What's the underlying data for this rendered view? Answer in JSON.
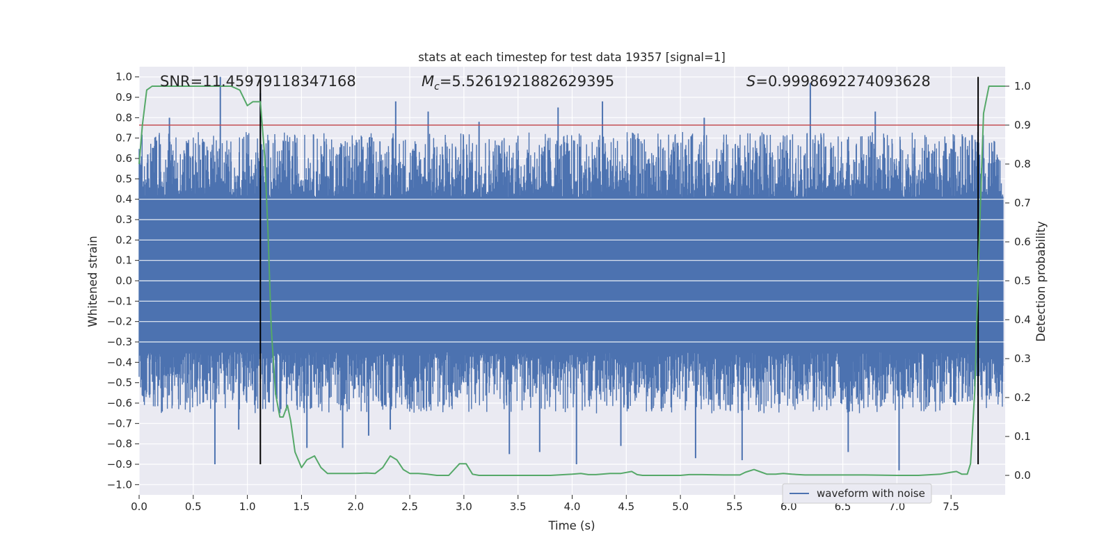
{
  "chart_data": {
    "type": "line",
    "title": "stats at each timestep for test data 19357 [signal=1]",
    "xlabel": "Time (s)",
    "ylabel": "Whitened strain",
    "ylabel_right": "Detection probability",
    "xlim": [
      0.0,
      8.0
    ],
    "ylim": [
      -1.05,
      1.05
    ],
    "ylim_right": [
      -0.05,
      1.05
    ],
    "x_ticks": [
      "0.0",
      "0.5",
      "1.0",
      "1.5",
      "2.0",
      "2.5",
      "3.0",
      "3.5",
      "4.0",
      "4.5",
      "5.0",
      "5.5",
      "6.0",
      "6.5",
      "7.0",
      "7.5"
    ],
    "y_ticks": [
      "1.0",
      "0.9",
      "0.8",
      "0.7",
      "0.6",
      "0.5",
      "0.4",
      "0.3",
      "0.2",
      "0.1",
      "0.0",
      "−0.1",
      "−0.2",
      "−0.3",
      "−0.4",
      "−0.5",
      "−0.6",
      "−0.7",
      "−0.8",
      "−0.9",
      "−1.0"
    ],
    "y_ticks_right": [
      "1.0",
      "0.9",
      "0.8",
      "0.7",
      "0.6",
      "0.5",
      "0.4",
      "0.3",
      "0.2",
      "0.1",
      "0.0"
    ],
    "annotations": {
      "snr": "SNR=11.45979118347168",
      "mc_symbol": "M",
      "mc_sub": "c",
      "mc_value": "=5.5261921882629395",
      "s_symbol": "S",
      "s_value": "=0.9998692274093628"
    },
    "legend": [
      {
        "label": "waveform with noise",
        "color": "#4c72b0"
      }
    ],
    "legend_position": "lower right",
    "threshold": {
      "value": 0.9,
      "axis": "right",
      "color": "#c44e52"
    },
    "vlines": [
      1.12,
      7.75
    ],
    "waveform": {
      "name": "waveform with noise",
      "color": "#4c72b0",
      "core_band": [
        -0.35,
        0.41
      ],
      "spikes": [
        {
          "x": 0.08,
          "v": 0.62
        },
        {
          "x": 0.28,
          "v": 0.8
        },
        {
          "x": 0.75,
          "v": 1.0
        },
        {
          "x": 1.12,
          "v": 0.92
        },
        {
          "x": 2.37,
          "v": 0.88
        },
        {
          "x": 2.67,
          "v": 0.83
        },
        {
          "x": 3.14,
          "v": 0.78
        },
        {
          "x": 3.87,
          "v": 0.85
        },
        {
          "x": 4.28,
          "v": 0.88
        },
        {
          "x": 5.22,
          "v": 0.8
        },
        {
          "x": 6.2,
          "v": 0.97
        },
        {
          "x": 6.8,
          "v": 0.83
        },
        {
          "x": 0.7,
          "v": -0.9
        },
        {
          "x": 0.92,
          "v": -0.73
        },
        {
          "x": 1.55,
          "v": -0.82
        },
        {
          "x": 1.88,
          "v": -0.82
        },
        {
          "x": 2.12,
          "v": -0.76
        },
        {
          "x": 2.32,
          "v": -0.73
        },
        {
          "x": 3.42,
          "v": -0.85
        },
        {
          "x": 3.7,
          "v": -0.84
        },
        {
          "x": 4.04,
          "v": -0.9
        },
        {
          "x": 4.45,
          "v": -0.81
        },
        {
          "x": 5.14,
          "v": -0.87
        },
        {
          "x": 5.57,
          "v": -0.88
        },
        {
          "x": 6.55,
          "v": -0.84
        },
        {
          "x": 7.02,
          "v": -0.93
        }
      ]
    },
    "probability": {
      "name": "detection probability",
      "color": "#55a868",
      "x": [
        0.0,
        0.03,
        0.07,
        0.12,
        0.2,
        0.35,
        0.6,
        0.75,
        0.85,
        0.93,
        1.0,
        1.05,
        1.08,
        1.12,
        1.16,
        1.19,
        1.22,
        1.26,
        1.3,
        1.33,
        1.37,
        1.4,
        1.44,
        1.5,
        1.55,
        1.62,
        1.68,
        1.74,
        1.82,
        1.9,
        2.0,
        2.1,
        2.18,
        2.25,
        2.32,
        2.38,
        2.44,
        2.5,
        2.58,
        2.66,
        2.75,
        2.86,
        2.96,
        3.02,
        3.08,
        3.14,
        3.2,
        3.3,
        3.5,
        3.8,
        4.0,
        4.08,
        4.15,
        4.22,
        4.35,
        4.45,
        4.55,
        4.6,
        4.65,
        4.7,
        4.8,
        5.0,
        5.08,
        5.2,
        5.4,
        5.55,
        5.6,
        5.68,
        5.75,
        5.8,
        5.88,
        5.95,
        6.03,
        6.15,
        6.4,
        6.7,
        7.0,
        7.2,
        7.4,
        7.5,
        7.55,
        7.6,
        7.65,
        7.68,
        7.72,
        7.76,
        7.8,
        7.85,
        7.9,
        7.95,
        8.0
      ],
      "values": [
        0.8,
        0.9,
        0.99,
        1.0,
        1.0,
        1.0,
        1.0,
        1.0,
        1.0,
        0.99,
        0.95,
        0.96,
        0.96,
        0.96,
        0.82,
        0.63,
        0.38,
        0.21,
        0.15,
        0.15,
        0.18,
        0.14,
        0.06,
        0.02,
        0.04,
        0.05,
        0.02,
        0.005,
        0.005,
        0.005,
        0.005,
        0.006,
        0.005,
        0.02,
        0.05,
        0.04,
        0.015,
        0.005,
        0.005,
        0.003,
        0.0,
        0.0,
        0.03,
        0.03,
        0.003,
        0.0,
        0.0,
        0.0,
        0.0,
        0.0,
        0.003,
        0.005,
        0.002,
        0.002,
        0.005,
        0.005,
        0.01,
        0.002,
        0.0,
        0.0,
        0.0,
        0.0,
        0.002,
        0.002,
        0.001,
        0.001,
        0.008,
        0.015,
        0.008,
        0.003,
        0.003,
        0.005,
        0.003,
        0.001,
        0.001,
        0.001,
        0.0,
        0.0,
        0.003,
        0.008,
        0.01,
        0.003,
        0.003,
        0.03,
        0.22,
        0.6,
        0.93,
        1.0,
        1.0,
        1.0,
        1.0
      ]
    }
  }
}
